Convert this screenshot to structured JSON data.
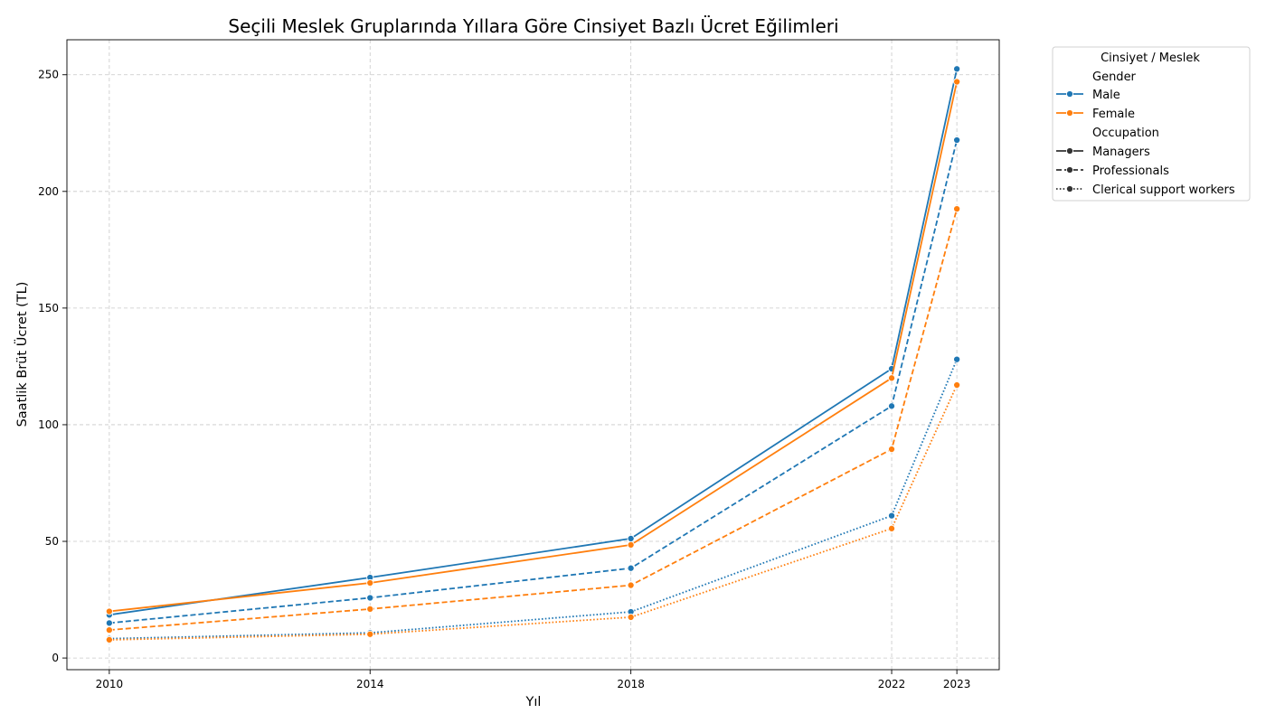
{
  "chart_data": {
    "type": "line",
    "title": "Seçili Meslek Gruplarında Yıllara Göre Cinsiyet Bazlı Ücret Eğilimleri",
    "xlabel": "Yıl",
    "ylabel": "Saatlik Brüt Ücret (TL)",
    "x": [
      2010,
      2014,
      2018,
      2022,
      2023
    ],
    "xlim": [
      2009.35,
      2023.65
    ],
    "ylim": [
      -5,
      265
    ],
    "yticks": [
      0,
      50,
      100,
      150,
      200,
      250
    ],
    "grid": true,
    "legend_placement": "outside-top-right",
    "series": [
      {
        "gender": "Male",
        "occupation": "Managers",
        "color": "#1f77b4",
        "dash": "solid",
        "values": [
          18.5,
          34.5,
          51.2,
          124.0,
          252.5
        ]
      },
      {
        "gender": "Female",
        "occupation": "Managers",
        "color": "#ff7f0e",
        "dash": "solid",
        "values": [
          20.0,
          32.2,
          48.5,
          120.0,
          247.0
        ]
      },
      {
        "gender": "Male",
        "occupation": "Professionals",
        "color": "#1f77b4",
        "dash": "dashed",
        "values": [
          15.0,
          25.8,
          38.5,
          108.0,
          222.0
        ]
      },
      {
        "gender": "Female",
        "occupation": "Professionals",
        "color": "#ff7f0e",
        "dash": "dashed",
        "values": [
          12.0,
          21.0,
          31.2,
          89.5,
          192.5
        ]
      },
      {
        "gender": "Male",
        "occupation": "Clerical support workers",
        "color": "#1f77b4",
        "dash": "dotted",
        "values": [
          8.3,
          10.8,
          19.8,
          61.0,
          128.0
        ]
      },
      {
        "gender": "Female",
        "occupation": "Clerical support workers",
        "color": "#ff7f0e",
        "dash": "dotted",
        "values": [
          7.8,
          10.2,
          17.5,
          55.5,
          117.0
        ]
      }
    ],
    "legend": {
      "title": "Cinsiyet / Meslek",
      "gender_heading": "Gender",
      "gender_items": [
        {
          "label": "Male",
          "color": "#1f77b4"
        },
        {
          "label": "Female",
          "color": "#ff7f0e"
        }
      ],
      "occupation_heading": "Occupation",
      "occupation_items": [
        {
          "label": "Managers",
          "dash": "solid"
        },
        {
          "label": "Professionals",
          "dash": "dashed"
        },
        {
          "label": "Clerical support workers",
          "dash": "dotted"
        }
      ]
    }
  }
}
